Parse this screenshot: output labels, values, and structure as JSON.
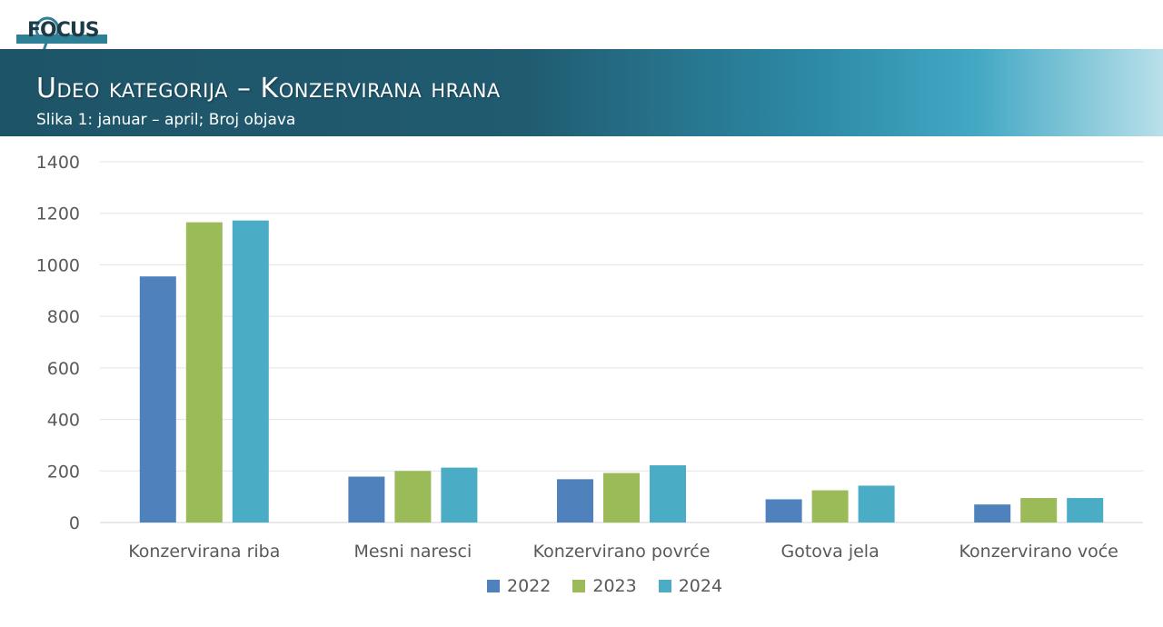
{
  "header": {
    "logo_text": "FOCUS",
    "title": "Udeo kategorija – Konzervirana hrana",
    "subtitle": "Slika 1: januar – april; Broj objava"
  },
  "chart_data": {
    "type": "bar",
    "categories": [
      "Konzervirana riba",
      "Mesni naresci",
      "Konzervirano povrće",
      "Gotova jela",
      "Konzervirano voće"
    ],
    "series": [
      {
        "name": "2022",
        "color": "#4f81bd",
        "values": [
          955,
          178,
          168,
          90,
          70
        ]
      },
      {
        "name": "2023",
        "color": "#9bbb59",
        "values": [
          1165,
          200,
          192,
          125,
          95
        ]
      },
      {
        "name": "2024",
        "color": "#4bacc6",
        "values": [
          1172,
          213,
          222,
          143,
          95
        ]
      }
    ],
    "ylim": [
      0,
      1400
    ],
    "yticks": [
      0,
      200,
      400,
      600,
      800,
      1000,
      1200,
      1400
    ],
    "grid": true,
    "legend_position": "bottom"
  }
}
